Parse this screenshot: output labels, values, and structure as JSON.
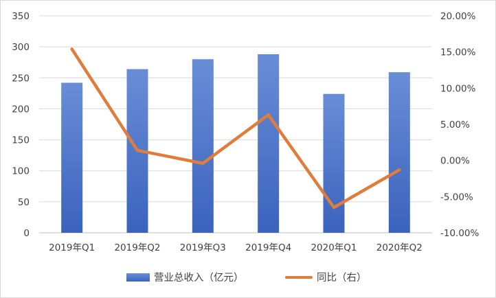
{
  "chart_data": {
    "type": "bar",
    "title": "",
    "xlabel": "",
    "ylabel": "",
    "categories": [
      "2019年Q1",
      "2019年Q2",
      "2019年Q3",
      "2019年Q4",
      "2020年Q1",
      "2020年Q2"
    ],
    "series": [
      {
        "name": "营业总收入（亿元）",
        "type": "bar",
        "axis": "left",
        "color": "#4a72c4",
        "values": [
          242,
          264,
          280,
          288,
          224,
          259
        ]
      },
      {
        "name": "同比（右）",
        "type": "line",
        "axis": "right",
        "color": "#e07d3c",
        "values": [
          15.4,
          1.4,
          -0.4,
          6.3,
          -6.5,
          -1.3
        ]
      }
    ],
    "ylim": [
      0,
      350
    ],
    "y_ticks": [
      "0",
      "50",
      "100",
      "150",
      "200",
      "250",
      "300",
      "350"
    ],
    "y2lim": [
      -10,
      20
    ],
    "y2_ticks": [
      "-10.00%",
      "-5.00%",
      "0.00%",
      "5.00%",
      "10.00%",
      "15.00%",
      "20.00%"
    ],
    "grid": true,
    "legend_position": "bottom"
  }
}
